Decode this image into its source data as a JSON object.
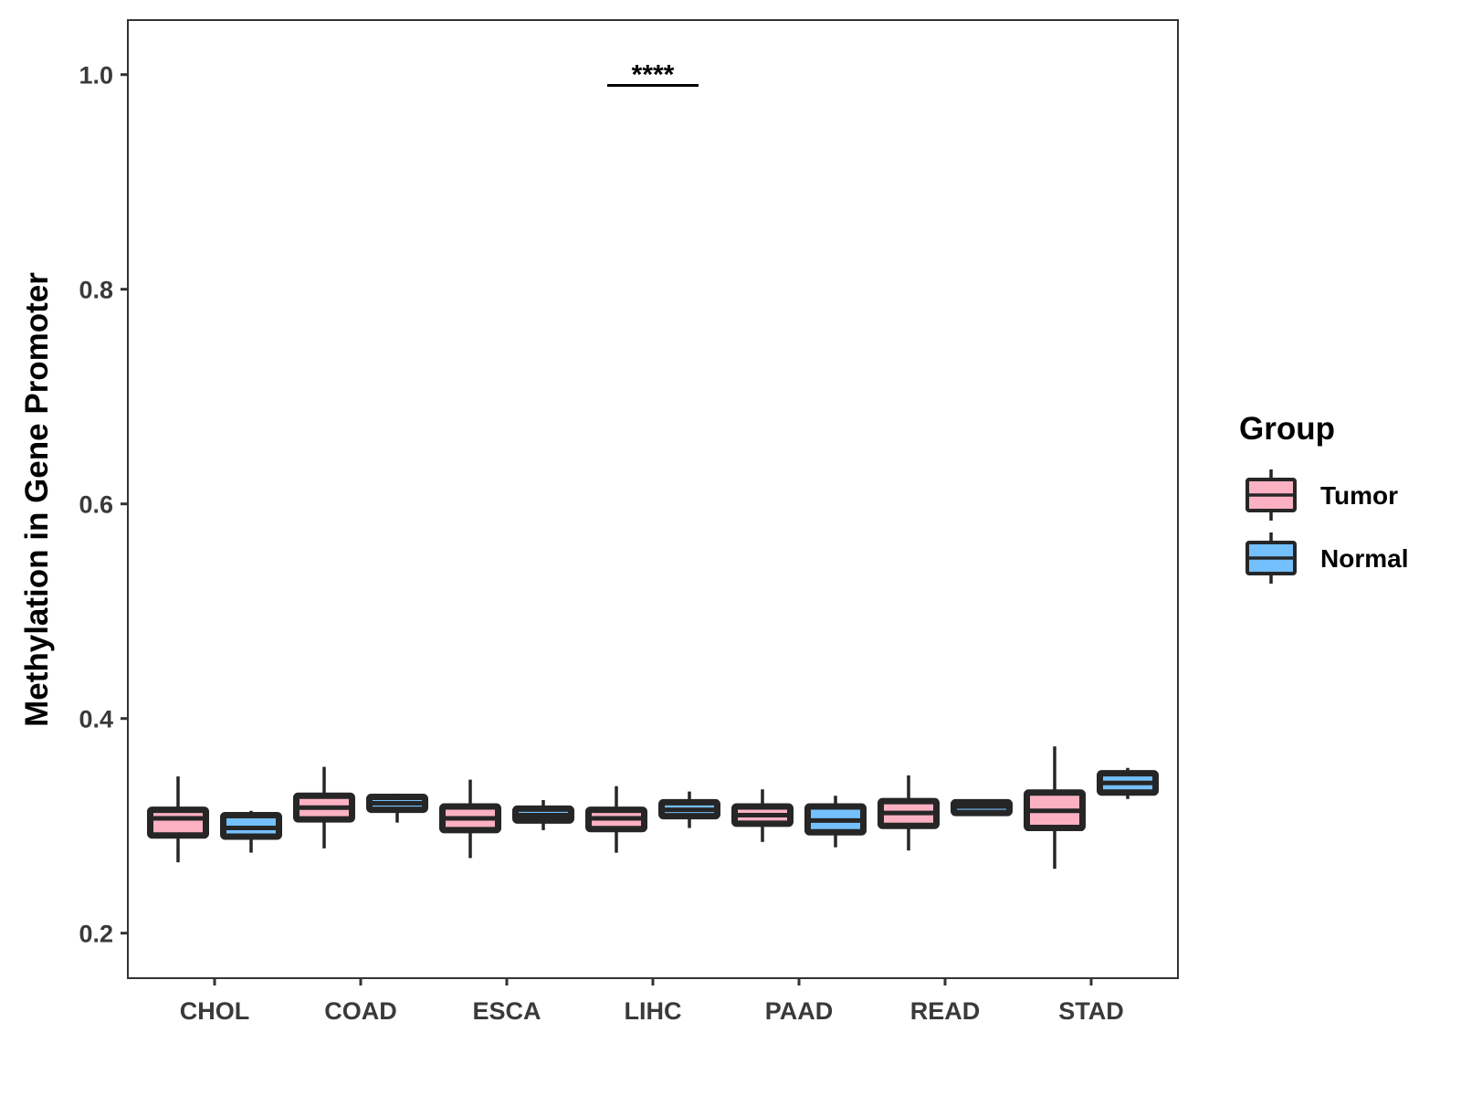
{
  "chart_data": {
    "type": "boxplot",
    "title": "",
    "xlabel": "",
    "ylabel": "Methylation in Gene Promoter",
    "ylim": [
      0.16,
      1.05
    ],
    "yticks": [
      0.2,
      0.4,
      0.6,
      0.8,
      1.0
    ],
    "ytick_labels": [
      "0.2",
      "0.4",
      "0.6",
      "0.8",
      "1.0"
    ],
    "categories": [
      "CHOL",
      "COAD",
      "ESCA",
      "LIHC",
      "PAAD",
      "READ",
      "STAD"
    ],
    "grid": false,
    "legend": {
      "title": "Group",
      "position": "right",
      "entries": [
        "Tumor",
        "Normal"
      ]
    },
    "colors": {
      "Tumor": "#FBB1C2",
      "Normal": "#74C0FC",
      "outline": "#262626"
    },
    "series": [
      {
        "name": "Tumor",
        "boxes": [
          {
            "min": 0.266,
            "q1": 0.291,
            "median": 0.307,
            "q3": 0.315,
            "max": 0.346
          },
          {
            "min": 0.279,
            "q1": 0.306,
            "median": 0.317,
            "q3": 0.328,
            "max": 0.355
          },
          {
            "min": 0.27,
            "q1": 0.296,
            "median": 0.307,
            "q3": 0.318,
            "max": 0.343
          },
          {
            "min": 0.275,
            "q1": 0.297,
            "median": 0.307,
            "q3": 0.315,
            "max": 0.337
          },
          {
            "min": 0.285,
            "q1": 0.302,
            "median": 0.31,
            "q3": 0.318,
            "max": 0.334
          },
          {
            "min": 0.277,
            "q1": 0.3,
            "median": 0.312,
            "q3": 0.323,
            "max": 0.347
          },
          {
            "min": 0.26,
            "q1": 0.298,
            "median": 0.314,
            "q3": 0.331,
            "max": 0.374
          }
        ]
      },
      {
        "name": "Normal",
        "boxes": [
          {
            "min": 0.275,
            "q1": 0.29,
            "median": 0.298,
            "q3": 0.31,
            "max": 0.314
          },
          {
            "min": 0.303,
            "q1": 0.315,
            "median": 0.321,
            "q3": 0.327,
            "max": 0.33
          },
          {
            "min": 0.296,
            "q1": 0.305,
            "median": 0.31,
            "q3": 0.316,
            "max": 0.324
          },
          {
            "min": 0.298,
            "q1": 0.309,
            "median": 0.315,
            "q3": 0.322,
            "max": 0.332
          },
          {
            "min": 0.28,
            "q1": 0.294,
            "median": 0.305,
            "q3": 0.318,
            "max": 0.328
          },
          {
            "min": 0.311,
            "q1": 0.312,
            "median": 0.318,
            "q3": 0.322,
            "max": 0.323
          },
          {
            "min": 0.325,
            "q1": 0.331,
            "median": 0.34,
            "q3": 0.349,
            "max": 0.354
          }
        ]
      }
    ],
    "annotations": [
      {
        "category": "LIHC",
        "text": "****",
        "y": 0.99
      }
    ]
  }
}
